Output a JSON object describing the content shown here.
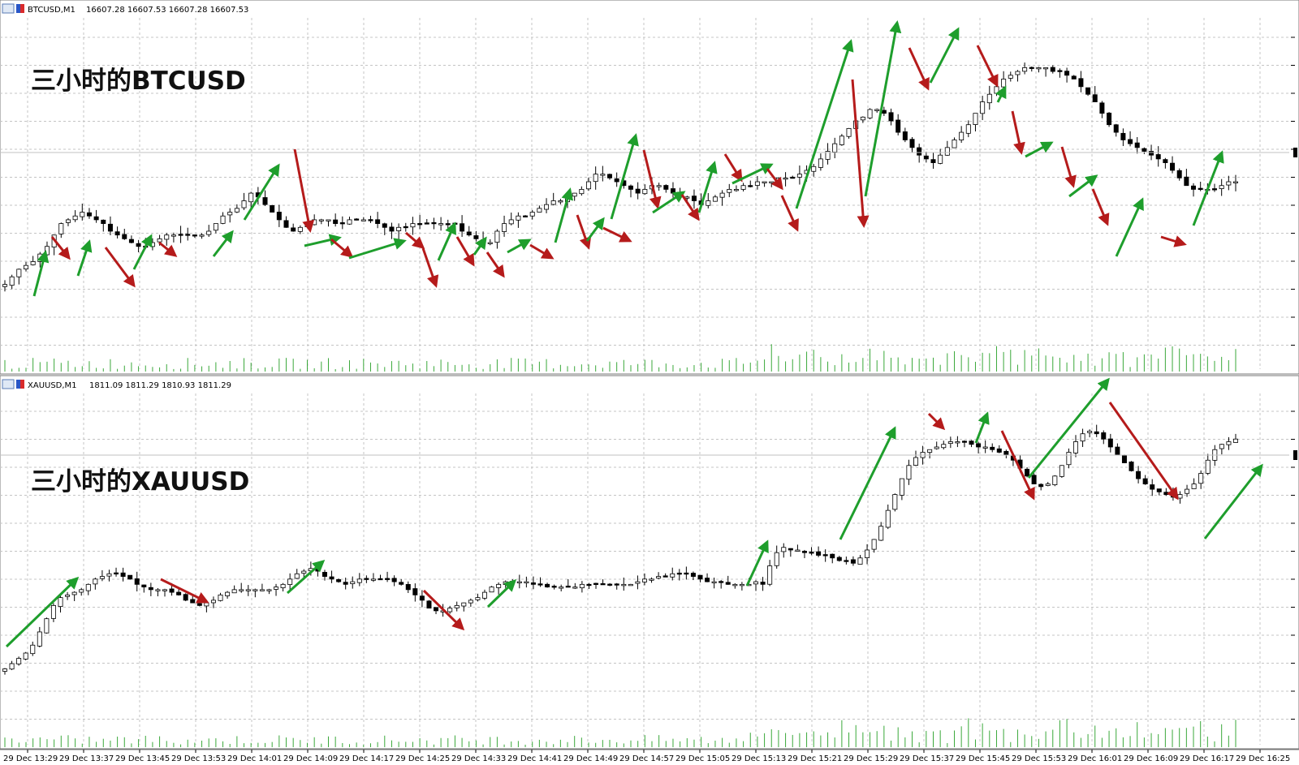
{
  "colors": {
    "background": "#ffffff",
    "grid": "#c4c4c4",
    "up_arrow": "#1e9e2c",
    "down_arrow": "#b51b1b",
    "candle": "#000000",
    "volume": "#3aa83a",
    "bid_line": "#c0c0c0"
  },
  "chart_data": [
    {
      "type": "candlestick",
      "symbol_header": "BTCUSD,M1",
      "ohlc_header": "16607.28 16607.53 16607.28 16607.53",
      "annotation": "三小时的BTCUSD",
      "last_price": 16607.53,
      "bars": 176,
      "closes": [
        16580,
        16582,
        16584,
        16585,
        16586,
        16588,
        16590,
        16593,
        16596,
        16597,
        16598,
        16599,
        16598,
        16597,
        16596,
        16594,
        16593,
        16592,
        16591,
        16590,
        16590,
        16591,
        16592,
        16593,
        16593,
        16593,
        16593,
        16593,
        16593,
        16594,
        16596,
        16598,
        16599,
        16600,
        16602,
        16604,
        16603,
        16601,
        16599,
        16597,
        16595,
        16594,
        16595,
        16596,
        16597,
        16597,
        16597,
        16596,
        16596,
        16597,
        16597,
        16597,
        16597,
        16596,
        16595,
        16594,
        16595,
        16595,
        16596,
        16596,
        16596,
        16596,
        16596,
        16596,
        16596,
        16594,
        16593,
        16592,
        16591,
        16591,
        16594,
        16596,
        16597,
        16598,
        16598,
        16599,
        16600,
        16601,
        16602,
        16602,
        16603,
        16604,
        16605,
        16607,
        16609,
        16609,
        16608,
        16607,
        16606,
        16605,
        16604,
        16605,
        16606,
        16606,
        16605,
        16604,
        16603,
        16603,
        16602,
        16601,
        16602,
        16603,
        16604,
        16605,
        16605,
        16606,
        16606,
        16607,
        16607,
        16607,
        16608,
        16608,
        16608,
        16609,
        16610,
        16611,
        16613,
        16615,
        16617,
        16619,
        16621,
        16623,
        16624,
        16626,
        16626,
        16625,
        16623,
        16620,
        16618,
        16616,
        16614,
        16613,
        16612,
        16614,
        16616,
        16618,
        16620,
        16622,
        16625,
        16628,
        16630,
        16632,
        16634,
        16635,
        16636,
        16637,
        16637,
        16637,
        16637,
        16636,
        16636,
        16635,
        16634,
        16632,
        16630,
        16628,
        16625,
        16622,
        16620,
        16618,
        16617,
        16616,
        16615,
        16614,
        16613,
        16612,
        16610,
        16608,
        16606,
        16605,
        16605,
        16605,
        16605,
        16606,
        16607,
        16607
      ]
    },
    {
      "type": "candlestick",
      "symbol_header": "XAUUSD,M1",
      "ohlc_header": "1811.09 1811.29 1810.93 1811.29",
      "annotation": "三小时的XAUUSD",
      "last_price": 1811.29,
      "bars": 176,
      "closes": [
        1802.6,
        1802.8,
        1803.0,
        1803.2,
        1803.5,
        1804.0,
        1804.5,
        1805.0,
        1805.3,
        1805.4,
        1805.5,
        1805.6,
        1805.8,
        1806.0,
        1806.1,
        1806.2,
        1806.2,
        1806.1,
        1806.0,
        1805.8,
        1805.7,
        1805.6,
        1805.6,
        1805.6,
        1805.5,
        1805.4,
        1805.2,
        1805.1,
        1805.0,
        1805.1,
        1805.2,
        1805.4,
        1805.5,
        1805.6,
        1805.6,
        1805.6,
        1805.6,
        1805.6,
        1805.6,
        1805.7,
        1805.8,
        1806.0,
        1806.2,
        1806.3,
        1806.4,
        1806.3,
        1806.1,
        1806.0,
        1805.9,
        1805.8,
        1805.9,
        1806.0,
        1806.0,
        1806.0,
        1806.0,
        1806.0,
        1805.9,
        1805.8,
        1805.6,
        1805.4,
        1805.2,
        1804.9,
        1804.8,
        1804.8,
        1804.9,
        1805.0,
        1805.1,
        1805.2,
        1805.3,
        1805.5,
        1805.7,
        1805.8,
        1805.9,
        1805.9,
        1805.9,
        1805.9,
        1805.8,
        1805.8,
        1805.7,
        1805.7,
        1805.7,
        1805.7,
        1805.7,
        1805.8,
        1805.8,
        1805.8,
        1805.8,
        1805.8,
        1805.8,
        1805.8,
        1805.8,
        1805.9,
        1806.0,
        1806.0,
        1806.1,
        1806.1,
        1806.2,
        1806.2,
        1806.2,
        1806.1,
        1806.0,
        1805.9,
        1805.9,
        1805.9,
        1805.8,
        1805.8,
        1805.8,
        1805.8,
        1805.9,
        1805.8,
        1806.5,
        1807.0,
        1807.2,
        1807.1,
        1807.1,
        1807.0,
        1807.0,
        1806.9,
        1806.9,
        1806.8,
        1806.7,
        1806.7,
        1806.6,
        1806.8,
        1807.1,
        1807.5,
        1808.0,
        1808.6,
        1809.2,
        1809.8,
        1810.3,
        1810.6,
        1810.8,
        1810.9,
        1811.0,
        1811.1,
        1811.2,
        1811.2,
        1811.2,
        1811.1,
        1811.0,
        1811.0,
        1810.9,
        1810.8,
        1810.7,
        1810.5,
        1810.2,
        1809.9,
        1809.6,
        1809.5,
        1809.6,
        1809.9,
        1810.3,
        1810.8,
        1811.2,
        1811.5,
        1811.6,
        1811.5,
        1811.3,
        1811.0,
        1810.7,
        1810.4,
        1810.1,
        1809.8,
        1809.6,
        1809.4,
        1809.3,
        1809.2,
        1809.1,
        1809.2,
        1809.4,
        1809.6,
        1810.0,
        1810.5,
        1810.9,
        1811.1,
        1811.2,
        1811.3
      ]
    }
  ],
  "time_axis": {
    "labels": [
      "29 Dec 13:29",
      "29 Dec 13:37",
      "29 Dec 13:45",
      "29 Dec 13:53",
      "29 Dec 14:01",
      "29 Dec 14:09",
      "29 Dec 14:17",
      "29 Dec 14:25",
      "29 Dec 14:33",
      "29 Dec 14:41",
      "29 Dec 14:49",
      "29 Dec 14:57",
      "29 Dec 15:05",
      "29 Dec 15:13",
      "29 Dec 15:21",
      "29 Dec 15:29",
      "29 Dec 15:37",
      "29 Dec 15:45",
      "29 Dec 15:53",
      "29 Dec 16:01",
      "29 Dec 16:09",
      "29 Dec 16:17",
      "29 Dec 16:25"
    ]
  }
}
